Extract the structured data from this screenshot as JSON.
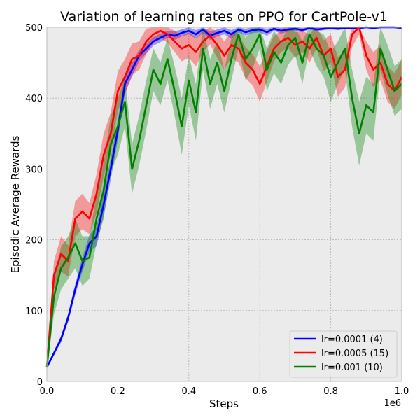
{
  "chart_data": {
    "type": "line",
    "title": "Variation of learning rates on PPO for CartPole-v1",
    "xlabel": "Steps",
    "ylabel": "Episodic Average Rewards",
    "x_offset_label": "1e6",
    "xlim": [
      0,
      1.0
    ],
    "ylim": [
      0,
      500
    ],
    "x_ticks": [
      "0.0",
      "0.2",
      "0.4",
      "0.6",
      "0.8",
      "1.0"
    ],
    "y_ticks": [
      "0",
      "100",
      "200",
      "300",
      "400",
      "500"
    ],
    "grid": true,
    "legend_position": "bottom-right",
    "series": [
      {
        "name": "lr=0.0001 (4)",
        "color": "#0000ff",
        "x": [
          0,
          0.02,
          0.04,
          0.06,
          0.08,
          0.1,
          0.12,
          0.14,
          0.16,
          0.18,
          0.2,
          0.22,
          0.24,
          0.26,
          0.28,
          0.3,
          0.32,
          0.34,
          0.36,
          0.38,
          0.4,
          0.42,
          0.44,
          0.46,
          0.48,
          0.5,
          0.52,
          0.54,
          0.56,
          0.58,
          0.6,
          0.62,
          0.64,
          0.66,
          0.68,
          0.7,
          0.72,
          0.74,
          0.76,
          0.78,
          0.8,
          0.82,
          0.84,
          0.86,
          0.88,
          0.9,
          0.92,
          0.94,
          0.96,
          0.98,
          1.0
        ],
        "y": [
          20,
          40,
          60,
          90,
          130,
          165,
          195,
          205,
          250,
          300,
          355,
          420,
          440,
          460,
          470,
          480,
          485,
          490,
          488,
          492,
          495,
          490,
          497,
          488,
          492,
          495,
          490,
          497,
          493,
          496,
          497,
          493,
          498,
          495,
          497,
          498,
          496,
          499,
          497,
          498,
          499,
          498,
          499,
          499,
          499,
          500,
          499,
          500,
          500,
          500,
          499
        ],
        "band": [
          2,
          3,
          5,
          6,
          8,
          10,
          12,
          14,
          16,
          15,
          14,
          12,
          10,
          8,
          7,
          6,
          6,
          5,
          6,
          5,
          5,
          6,
          5,
          6,
          5,
          5,
          6,
          4,
          5,
          4,
          4,
          5,
          3,
          4,
          3,
          3,
          3,
          2,
          3,
          2,
          2,
          2,
          2,
          2,
          2,
          1,
          2,
          1,
          1,
          1,
          1
        ]
      },
      {
        "name": "lr=0.0005 (15)",
        "color": "#ff0000",
        "x": [
          0,
          0.02,
          0.04,
          0.06,
          0.08,
          0.1,
          0.12,
          0.14,
          0.16,
          0.18,
          0.2,
          0.22,
          0.24,
          0.26,
          0.28,
          0.3,
          0.32,
          0.34,
          0.36,
          0.38,
          0.4,
          0.42,
          0.44,
          0.46,
          0.48,
          0.5,
          0.52,
          0.54,
          0.56,
          0.58,
          0.6,
          0.62,
          0.64,
          0.66,
          0.68,
          0.7,
          0.72,
          0.74,
          0.76,
          0.78,
          0.8,
          0.82,
          0.84,
          0.86,
          0.88,
          0.9,
          0.92,
          0.94,
          0.96,
          0.98,
          1.0
        ],
        "y": [
          20,
          150,
          180,
          170,
          230,
          240,
          230,
          265,
          320,
          350,
          410,
          430,
          455,
          460,
          480,
          490,
          495,
          490,
          480,
          470,
          475,
          465,
          480,
          488,
          475,
          460,
          475,
          470,
          450,
          440,
          420,
          445,
          470,
          480,
          485,
          475,
          480,
          470,
          485,
          460,
          470,
          430,
          440,
          490,
          500,
          460,
          440,
          450,
          420,
          410,
          430
        ],
        "band": [
          5,
          20,
          25,
          22,
          25,
          25,
          22,
          28,
          30,
          30,
          28,
          25,
          22,
          20,
          18,
          12,
          10,
          12,
          15,
          18,
          18,
          20,
          15,
          12,
          18,
          20,
          18,
          20,
          22,
          22,
          25,
          22,
          18,
          15,
          14,
          18,
          15,
          20,
          15,
          22,
          20,
          28,
          25,
          18,
          10,
          20,
          25,
          25,
          25,
          25,
          25
        ]
      },
      {
        "name": "lr=0.001 (10)",
        "color": "#008000",
        "x": [
          0,
          0.02,
          0.04,
          0.06,
          0.08,
          0.1,
          0.12,
          0.14,
          0.16,
          0.18,
          0.2,
          0.22,
          0.24,
          0.26,
          0.28,
          0.3,
          0.32,
          0.34,
          0.36,
          0.38,
          0.4,
          0.42,
          0.44,
          0.46,
          0.48,
          0.5,
          0.52,
          0.54,
          0.56,
          0.58,
          0.6,
          0.62,
          0.64,
          0.66,
          0.68,
          0.7,
          0.72,
          0.74,
          0.76,
          0.78,
          0.8,
          0.82,
          0.84,
          0.86,
          0.88,
          0.9,
          0.92,
          0.94,
          0.96,
          0.98,
          1.0
        ],
        "y": [
          20,
          120,
          160,
          175,
          195,
          170,
          175,
          230,
          270,
          335,
          360,
          395,
          300,
          340,
          390,
          440,
          420,
          455,
          410,
          360,
          425,
          380,
          470,
          420,
          450,
          410,
          455,
          490,
          455,
          470,
          490,
          440,
          465,
          450,
          475,
          485,
          450,
          490,
          470,
          460,
          430,
          450,
          470,
          400,
          350,
          390,
          380,
          470,
          440,
          410,
          420
        ],
        "band": [
          5,
          25,
          30,
          30,
          35,
          35,
          30,
          35,
          40,
          40,
          40,
          35,
          35,
          35,
          35,
          30,
          30,
          30,
          35,
          40,
          35,
          40,
          30,
          35,
          30,
          30,
          30,
          20,
          30,
          28,
          20,
          30,
          30,
          30,
          28,
          25,
          30,
          20,
          25,
          30,
          35,
          30,
          30,
          40,
          45,
          40,
          40,
          30,
          35,
          35,
          35
        ]
      }
    ]
  }
}
